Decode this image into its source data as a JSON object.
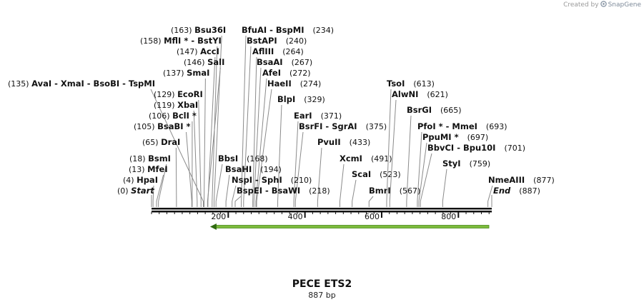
{
  "credit": {
    "prefix": "Created by",
    "brand": "SnapGene"
  },
  "title": "PECE ETS2",
  "subtitle": "887 bp",
  "scale": {
    "length_bp": 887,
    "major_ticks": [
      "200",
      "400",
      "600",
      "800"
    ]
  },
  "feature": {
    "name": "orf-arrow",
    "start_bp": 175,
    "end_bp": 887,
    "direction": "reverse",
    "color": "#7dbb3c"
  },
  "labels": [
    {
      "text": "(163)",
      "name": "Bsu36I",
      "cut": 163
    },
    {
      "text": "(158)",
      "name": "MflI * - BstYI",
      "cut": 158
    },
    {
      "text": "(147)",
      "name": "AccI",
      "cut": 147
    },
    {
      "text": "(146)",
      "name": "SalI",
      "cut": 146
    },
    {
      "text": "(137)",
      "name": "SmaI",
      "cut": 137
    },
    {
      "text": "(135)",
      "name": "AvaI - XmaI - BsoBI - TspMI",
      "cut": 135
    },
    {
      "text": "(129)",
      "name": "EcoRI",
      "cut": 129
    },
    {
      "text": "(119)",
      "name": "XbaI",
      "cut": 119
    },
    {
      "text": "(106)",
      "name": "BclI *",
      "cut": 106
    },
    {
      "text": "(105)",
      "name": "BsaBI *",
      "cut": 105
    },
    {
      "text": "(65)",
      "name": "DraI",
      "cut": 65
    },
    {
      "text": "(18)",
      "name": "BsmI",
      "cut": 18
    },
    {
      "text": "(13)",
      "name": "MfeI",
      "cut": 13
    },
    {
      "text": "(4)",
      "name": "HpaI",
      "cut": 4
    },
    {
      "text": "(0)",
      "name": "Start",
      "cut": 0
    },
    {
      "text": "(234)",
      "name": "BfuAI - BspMI",
      "cut": 234
    },
    {
      "text": "(240)",
      "name": "BstAPI",
      "cut": 240
    },
    {
      "text": "(264)",
      "name": "AflIII",
      "cut": 264
    },
    {
      "text": "(267)",
      "name": "BsaAI",
      "cut": 267
    },
    {
      "text": "(272)",
      "name": "AfeI",
      "cut": 272
    },
    {
      "text": "(274)",
      "name": "HaeII",
      "cut": 274
    },
    {
      "text": "(329)",
      "name": "BlpI",
      "cut": 329
    },
    {
      "text": "(371)",
      "name": "EarI",
      "cut": 371
    },
    {
      "text": "(375)",
      "name": "BsrFI - SgrAI",
      "cut": 375
    },
    {
      "text": "(433)",
      "name": "PvuII",
      "cut": 433
    },
    {
      "text": "(491)",
      "name": "XcmI",
      "cut": 491
    },
    {
      "text": "(523)",
      "name": "ScaI",
      "cut": 523
    },
    {
      "text": "(567)",
      "name": "BmrI",
      "cut": 567
    },
    {
      "text": "(168)",
      "name": "BbsI",
      "cut": 168
    },
    {
      "text": "(194)",
      "name": "BsaHI",
      "cut": 194
    },
    {
      "text": "(210)",
      "name": "NspI - SphI",
      "cut": 210
    },
    {
      "text": "(218)",
      "name": "BspEI - BsaWI",
      "cut": 218
    },
    {
      "text": "(613)",
      "name": "TsoI",
      "cut": 613
    },
    {
      "text": "(621)",
      "name": "AlwNI",
      "cut": 621
    },
    {
      "text": "(665)",
      "name": "BsrGI",
      "cut": 665
    },
    {
      "text": "(693)",
      "name": "PfoI * - MmeI",
      "cut": 693
    },
    {
      "text": "(697)",
      "name": "PpuMI *",
      "cut": 697
    },
    {
      "text": "(701)",
      "name": "BbvCI - Bpu10I",
      "cut": 701
    },
    {
      "text": "(759)",
      "name": "StyI",
      "cut": 759
    },
    {
      "text": "(877)",
      "name": "NmeAIII",
      "cut": 877
    },
    {
      "text": "(887)",
      "name": "End",
      "cut": 887
    }
  ]
}
